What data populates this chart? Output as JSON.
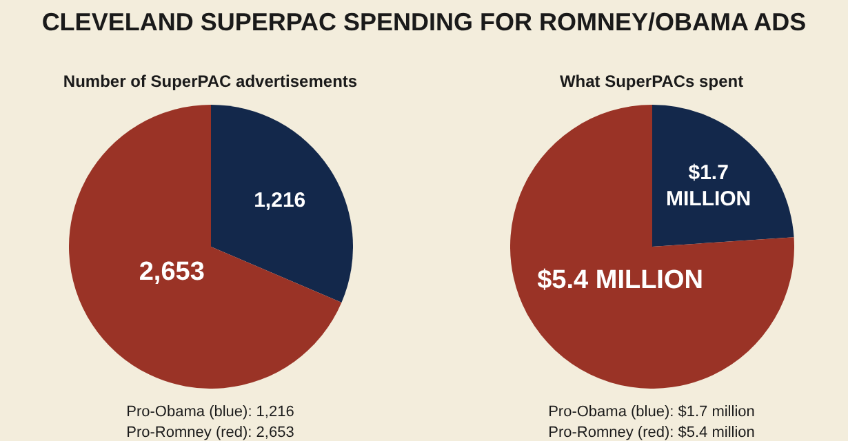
{
  "chart_data": [
    {
      "type": "pie",
      "title": "CLEVELAND SUPERPAC SPENDING FOR ROMNEY/OBAMA ADS",
      "subtitle": "Number of SuperPAC advertisements",
      "categories": [
        null,
        null
      ],
      "values": [
        1216,
        2653
      ],
      "colors": [
        "#13284b",
        "#9a3326"
      ],
      "value_labels": [
        "1,216",
        "2,653"
      ],
      "annotations": [
        "Pro-Obama (blue): 1,216",
        "Pro-Romney (red): 2,653"
      ]
    },
    {
      "type": "pie",
      "title": "What SuperPACs spent",
      "categories": [
        null,
        null
      ],
      "values": [
        1.7,
        5.4
      ],
      "colors": [
        "#13284b",
        "#9a3326"
      ],
      "value_labels": [
        "$1.7 MILLION",
        "$5.4 MILLION"
      ],
      "annotations": [
        "Pro-Obama (blue): $1.7 million",
        "Pro-Romney (red): $5.4 million"
      ]
    }
  ]
}
